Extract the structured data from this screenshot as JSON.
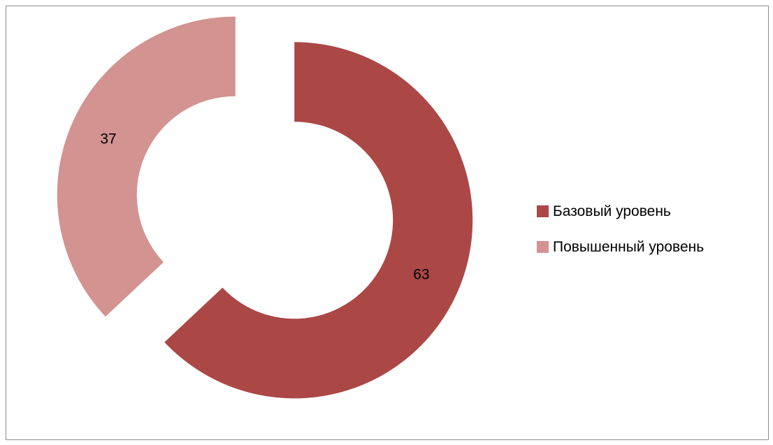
{
  "chart_data": {
    "type": "pie",
    "variant": "exploded-doughnut",
    "categories": [
      "Базовый уровень",
      "Повышенный уровень"
    ],
    "values": [
      63,
      37
    ],
    "data_labels": [
      "63",
      "37"
    ],
    "colors": [
      "#ab4745",
      "#d29391"
    ],
    "title": "",
    "legend_position": "right"
  }
}
